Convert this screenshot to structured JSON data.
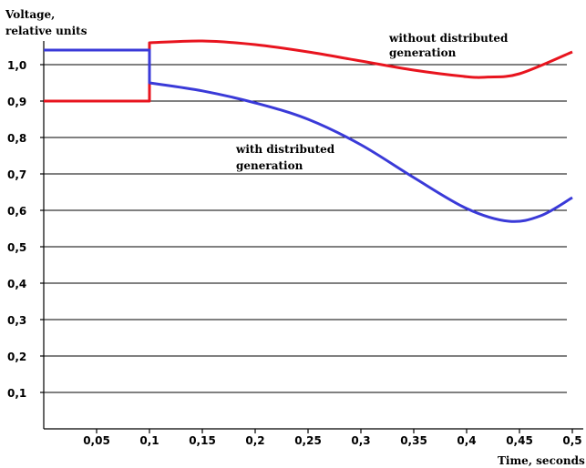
{
  "chart_data": {
    "type": "line",
    "ylabel": [
      "Voltage,",
      "relative units"
    ],
    "xlabel": "Time, seconds",
    "xlim": [
      0,
      0.5
    ],
    "ylim": [
      0,
      1.05
    ],
    "grid": "horizontal",
    "x_ticks": [
      "0,05",
      "0,1",
      "0,15",
      "0,2",
      "0,25",
      "0,3",
      "0,35",
      "0,4",
      "0,45",
      "0,5"
    ],
    "y_ticks": [
      "0,1",
      "0,2",
      "0,3",
      "0,4",
      "0,5",
      "0,6",
      "0,7",
      "0,8",
      "0,9",
      "1,0"
    ],
    "series": [
      {
        "name": "without distributed generation",
        "color": "#e8141e",
        "points": [
          [
            0,
            0.9
          ],
          [
            0.1,
            0.9
          ],
          [
            0.1,
            1.06
          ],
          [
            0.15,
            1.065
          ],
          [
            0.2,
            1.055
          ],
          [
            0.25,
            1.035
          ],
          [
            0.3,
            1.01
          ],
          [
            0.35,
            0.985
          ],
          [
            0.4,
            0.967
          ],
          [
            0.42,
            0.966
          ],
          [
            0.45,
            0.975
          ],
          [
            0.5,
            1.035
          ]
        ]
      },
      {
        "name": "with distributed generation",
        "color": "#3a3ad8",
        "points": [
          [
            0,
            1.04
          ],
          [
            0.1,
            1.04
          ],
          [
            0.1,
            0.95
          ],
          [
            0.15,
            0.928
          ],
          [
            0.2,
            0.895
          ],
          [
            0.25,
            0.85
          ],
          [
            0.3,
            0.78
          ],
          [
            0.35,
            0.69
          ],
          [
            0.4,
            0.605
          ],
          [
            0.44,
            0.57
          ],
          [
            0.47,
            0.585
          ],
          [
            0.5,
            0.635
          ]
        ]
      }
    ],
    "annotations": [
      {
        "lines": [
          "without distributed",
          "generation"
        ]
      },
      {
        "lines": [
          "with distributed",
          "generation"
        ]
      }
    ]
  }
}
